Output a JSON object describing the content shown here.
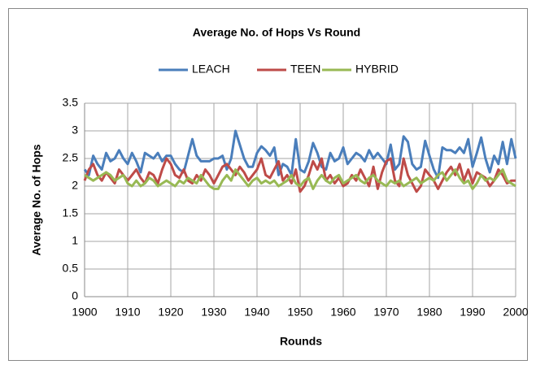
{
  "chart_data": {
    "type": "line",
    "title": "Average No. of Hops Vs Round",
    "x_label": "Rounds",
    "y_label": "Average No. of Hops",
    "x": [
      1900,
      1901,
      1902,
      1903,
      1904,
      1905,
      1906,
      1907,
      1908,
      1909,
      1910,
      1911,
      1912,
      1913,
      1914,
      1915,
      1916,
      1917,
      1918,
      1919,
      1920,
      1921,
      1922,
      1923,
      1924,
      1925,
      1926,
      1927,
      1928,
      1929,
      1930,
      1931,
      1932,
      1933,
      1934,
      1935,
      1936,
      1937,
      1938,
      1939,
      1940,
      1941,
      1942,
      1943,
      1944,
      1945,
      1946,
      1947,
      1948,
      1949,
      1950,
      1951,
      1952,
      1953,
      1954,
      1955,
      1956,
      1957,
      1958,
      1959,
      1960,
      1961,
      1962,
      1963,
      1964,
      1965,
      1966,
      1967,
      1968,
      1969,
      1970,
      1971,
      1972,
      1973,
      1974,
      1975,
      1976,
      1977,
      1978,
      1979,
      1980,
      1981,
      1982,
      1983,
      1984,
      1985,
      1986,
      1987,
      1988,
      1989,
      1990,
      1991,
      1992,
      1993,
      1994,
      1995,
      1996,
      1997,
      1998,
      1999,
      2000
    ],
    "series": [
      {
        "name": "LEACH",
        "color": "#4a7ebb",
        "values": [
          2.3,
          2.2,
          2.55,
          2.4,
          2.3,
          2.6,
          2.45,
          2.5,
          2.65,
          2.5,
          2.4,
          2.6,
          2.45,
          2.25,
          2.6,
          2.55,
          2.5,
          2.6,
          2.45,
          2.55,
          2.55,
          2.4,
          2.3,
          2.25,
          2.55,
          2.85,
          2.55,
          2.45,
          2.45,
          2.45,
          2.5,
          2.5,
          2.55,
          2.3,
          2.5,
          3.0,
          2.75,
          2.5,
          2.35,
          2.35,
          2.6,
          2.72,
          2.65,
          2.55,
          2.7,
          2.2,
          2.4,
          2.35,
          2.2,
          2.85,
          2.3,
          2.25,
          2.45,
          2.78,
          2.6,
          2.35,
          2.3,
          2.6,
          2.45,
          2.5,
          2.7,
          2.4,
          2.5,
          2.6,
          2.55,
          2.45,
          2.65,
          2.5,
          2.6,
          2.5,
          2.4,
          2.75,
          2.3,
          2.4,
          2.9,
          2.8,
          2.4,
          2.3,
          2.35,
          2.82,
          2.55,
          2.3,
          2.15,
          2.7,
          2.65,
          2.65,
          2.6,
          2.7,
          2.6,
          2.85,
          2.35,
          2.6,
          2.88,
          2.5,
          2.25,
          2.55,
          2.4,
          2.8,
          2.4,
          2.85,
          2.5
        ]
      },
      {
        "name": "TEEN",
        "color": "#be4b48",
        "values": [
          2.1,
          2.3,
          2.4,
          2.2,
          2.1,
          2.25,
          2.15,
          2.05,
          2.3,
          2.2,
          2.1,
          2.2,
          2.3,
          2.15,
          2.05,
          2.25,
          2.2,
          2.05,
          2.3,
          2.5,
          2.4,
          2.2,
          2.15,
          2.3,
          2.1,
          2.05,
          2.2,
          2.1,
          2.3,
          2.2,
          2.05,
          2.2,
          2.35,
          2.4,
          2.3,
          2.2,
          2.35,
          2.25,
          2.1,
          2.2,
          2.3,
          2.5,
          2.2,
          2.15,
          2.3,
          2.45,
          2.1,
          2.2,
          2.05,
          2.3,
          1.9,
          2.0,
          2.2,
          2.45,
          2.3,
          2.5,
          2.1,
          2.2,
          2.05,
          2.15,
          2.0,
          2.05,
          2.2,
          2.1,
          2.3,
          2.15,
          2.0,
          2.35,
          1.95,
          2.25,
          2.45,
          2.5,
          2.1,
          2.0,
          2.5,
          2.2,
          2.05,
          1.9,
          2.0,
          2.3,
          2.2,
          2.1,
          1.95,
          2.1,
          2.25,
          2.35,
          2.2,
          2.4,
          2.1,
          2.3,
          2.05,
          2.25,
          2.2,
          2.15,
          2.0,
          2.1,
          2.3,
          2.2,
          2.05,
          2.1,
          2.1
        ]
      },
      {
        "name": "HYBRID",
        "color": "#98b954",
        "values": [
          2.2,
          2.15,
          2.1,
          2.15,
          2.2,
          2.25,
          2.2,
          2.1,
          2.15,
          2.2,
          2.05,
          2.0,
          2.1,
          2.0,
          2.05,
          2.15,
          2.1,
          2.0,
          2.05,
          2.1,
          2.05,
          2.0,
          2.1,
          2.05,
          2.15,
          2.1,
          2.05,
          2.2,
          2.1,
          2.0,
          1.95,
          1.95,
          2.1,
          2.2,
          2.1,
          2.3,
          2.2,
          2.1,
          2.0,
          2.1,
          2.15,
          2.05,
          2.1,
          2.05,
          2.1,
          2.0,
          2.05,
          2.1,
          2.2,
          2.05,
          2.0,
          2.1,
          2.15,
          1.95,
          2.1,
          2.2,
          2.1,
          2.05,
          2.15,
          2.2,
          2.05,
          2.1,
          2.15,
          2.2,
          2.1,
          2.05,
          2.15,
          2.2,
          2.1,
          2.05,
          2.0,
          2.1,
          2.05,
          2.1,
          2.0,
          2.05,
          2.1,
          2.15,
          2.05,
          2.1,
          2.15,
          2.1,
          2.2,
          2.25,
          2.1,
          2.2,
          2.3,
          2.15,
          2.05,
          2.1,
          1.95,
          2.05,
          2.2,
          2.1,
          2.15,
          2.1,
          2.2,
          2.3,
          2.1,
          2.05,
          2.0
        ]
      }
    ],
    "xlim": [
      1900,
      2000
    ],
    "xticks": [
      1900,
      1910,
      1920,
      1930,
      1940,
      1950,
      1960,
      1970,
      1980,
      1990,
      2000
    ],
    "ylim": [
      0,
      3.5
    ],
    "yticks": [
      0,
      0.5,
      1,
      1.5,
      2,
      2.5,
      3,
      3.5
    ],
    "grid": true,
    "legend": "top"
  }
}
